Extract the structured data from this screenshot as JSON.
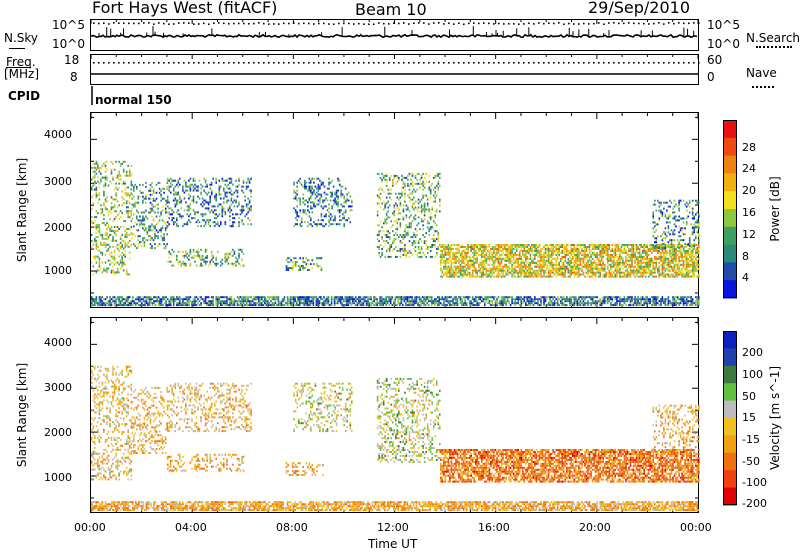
{
  "header": {
    "station": "Fort Hays West (fitACF)",
    "beam": "Beam 10",
    "date": "29/Sep/2010"
  },
  "noise_panel": {
    "left_label": "N.Sky",
    "right_label": "N.Search",
    "left_ticks": [
      "10^5",
      "10^0"
    ],
    "right_ticks": [
      "10^5",
      "10^0"
    ]
  },
  "freq_panel": {
    "left_label_1": "Freq.",
    "left_label_2": "[MHz]",
    "right_label": "Nave",
    "left_ticks": [
      "18",
      "8"
    ],
    "right_ticks": [
      "60",
      "0"
    ]
  },
  "cpid": {
    "label": "CPID",
    "value": "normal 150"
  },
  "colors": {
    "power": [
      "#0a14e0",
      "#1e4ca8",
      "#2a8a7a",
      "#3ea060",
      "#8cc83c",
      "#f2e020",
      "#f0b010",
      "#f08010",
      "#f04810",
      "#e81010"
    ],
    "velocity": [
      "#1020c0",
      "#2040b0",
      "#3c7840",
      "#60c040",
      "#bcbcbc",
      "#f0c020",
      "#f0a010",
      "#f07010",
      "#f04010",
      "#e00000"
    ]
  },
  "chart_data": [
    {
      "type": "heatmap",
      "quantity": "Power",
      "xlabel": "",
      "ylabel": "Slant Range [km]",
      "x_ticks": [
        "00:00",
        "04:00",
        "08:00",
        "12:00",
        "16:00",
        "20:00",
        "00:00"
      ],
      "y_ticks": [
        "1000",
        "2000",
        "3000",
        "4000"
      ],
      "ylim": [
        180,
        4600
      ],
      "xlim_hours": [
        0,
        24
      ],
      "colorbar": {
        "label": "Power [dB]",
        "ticks": [
          "4",
          "8",
          "12",
          "16",
          "20",
          "24",
          "28"
        ],
        "range": [
          0,
          32
        ]
      },
      "echo_regions": [
        {
          "t": [
            0.0,
            1.6
          ],
          "range": [
            900,
            3500
          ],
          "value_mean": 14
        },
        {
          "t": [
            1.6,
            3.0
          ],
          "range": [
            1500,
            3000
          ],
          "value_mean": 10
        },
        {
          "t": [
            3.0,
            6.0
          ],
          "range": [
            1100,
            1500
          ],
          "value_mean": 12
        },
        {
          "t": [
            3.0,
            6.3
          ],
          "range": [
            2000,
            3100
          ],
          "value_mean": 8
        },
        {
          "t": [
            7.7,
            9.2
          ],
          "range": [
            1000,
            1300
          ],
          "value_mean": 10
        },
        {
          "t": [
            8.0,
            10.3
          ],
          "range": [
            2000,
            3100
          ],
          "value_mean": 8
        },
        {
          "t": [
            11.3,
            13.8
          ],
          "range": [
            1300,
            3200
          ],
          "value_mean": 12
        },
        {
          "t": [
            13.8,
            24.0
          ],
          "range": [
            850,
            1600
          ],
          "value_mean": 18
        },
        {
          "t": [
            22.2,
            24.0
          ],
          "range": [
            1500,
            2600
          ],
          "value_mean": 9
        },
        {
          "t": [
            0.0,
            24.0
          ],
          "range": [
            200,
            400
          ],
          "value_mean": 8
        }
      ]
    },
    {
      "type": "heatmap",
      "quantity": "Velocity",
      "xlabel": "Time UT",
      "ylabel": "Slant Range [km]",
      "x_ticks": [
        "00:00",
        "04:00",
        "08:00",
        "12:00",
        "16:00",
        "20:00",
        "00:00"
      ],
      "y_ticks": [
        "1000",
        "2000",
        "3000",
        "4000"
      ],
      "ylim": [
        180,
        4600
      ],
      "xlim_hours": [
        0,
        24
      ],
      "colorbar": {
        "label": "Velocity [m s^-1]",
        "ticks": [
          "200",
          "100",
          "50",
          "15",
          "-15",
          "-50",
          "-100",
          "-200"
        ],
        "range": [
          -250,
          250
        ]
      },
      "echo_regions": [
        {
          "t": [
            0.0,
            1.6
          ],
          "range": [
            900,
            3500
          ],
          "value_mean": -30
        },
        {
          "t": [
            1.6,
            3.0
          ],
          "range": [
            1500,
            3000
          ],
          "value_mean": -40
        },
        {
          "t": [
            3.0,
            6.0
          ],
          "range": [
            1100,
            1500
          ],
          "value_mean": -60
        },
        {
          "t": [
            3.0,
            6.3
          ],
          "range": [
            2000,
            3100
          ],
          "value_mean": -40
        },
        {
          "t": [
            7.7,
            9.2
          ],
          "range": [
            1000,
            1300
          ],
          "value_mean": -50
        },
        {
          "t": [
            8.0,
            10.3
          ],
          "range": [
            2000,
            3100
          ],
          "value_mean": 20
        },
        {
          "t": [
            11.3,
            13.8
          ],
          "range": [
            1300,
            3200
          ],
          "value_mean": 30
        },
        {
          "t": [
            13.8,
            24.0
          ],
          "range": [
            850,
            1600
          ],
          "value_mean": -120
        },
        {
          "t": [
            22.2,
            24.0
          ],
          "range": [
            1500,
            2600
          ],
          "value_mean": -60
        },
        {
          "t": [
            0.0,
            24.0
          ],
          "range": [
            200,
            400
          ],
          "value_mean": -60
        }
      ]
    }
  ]
}
